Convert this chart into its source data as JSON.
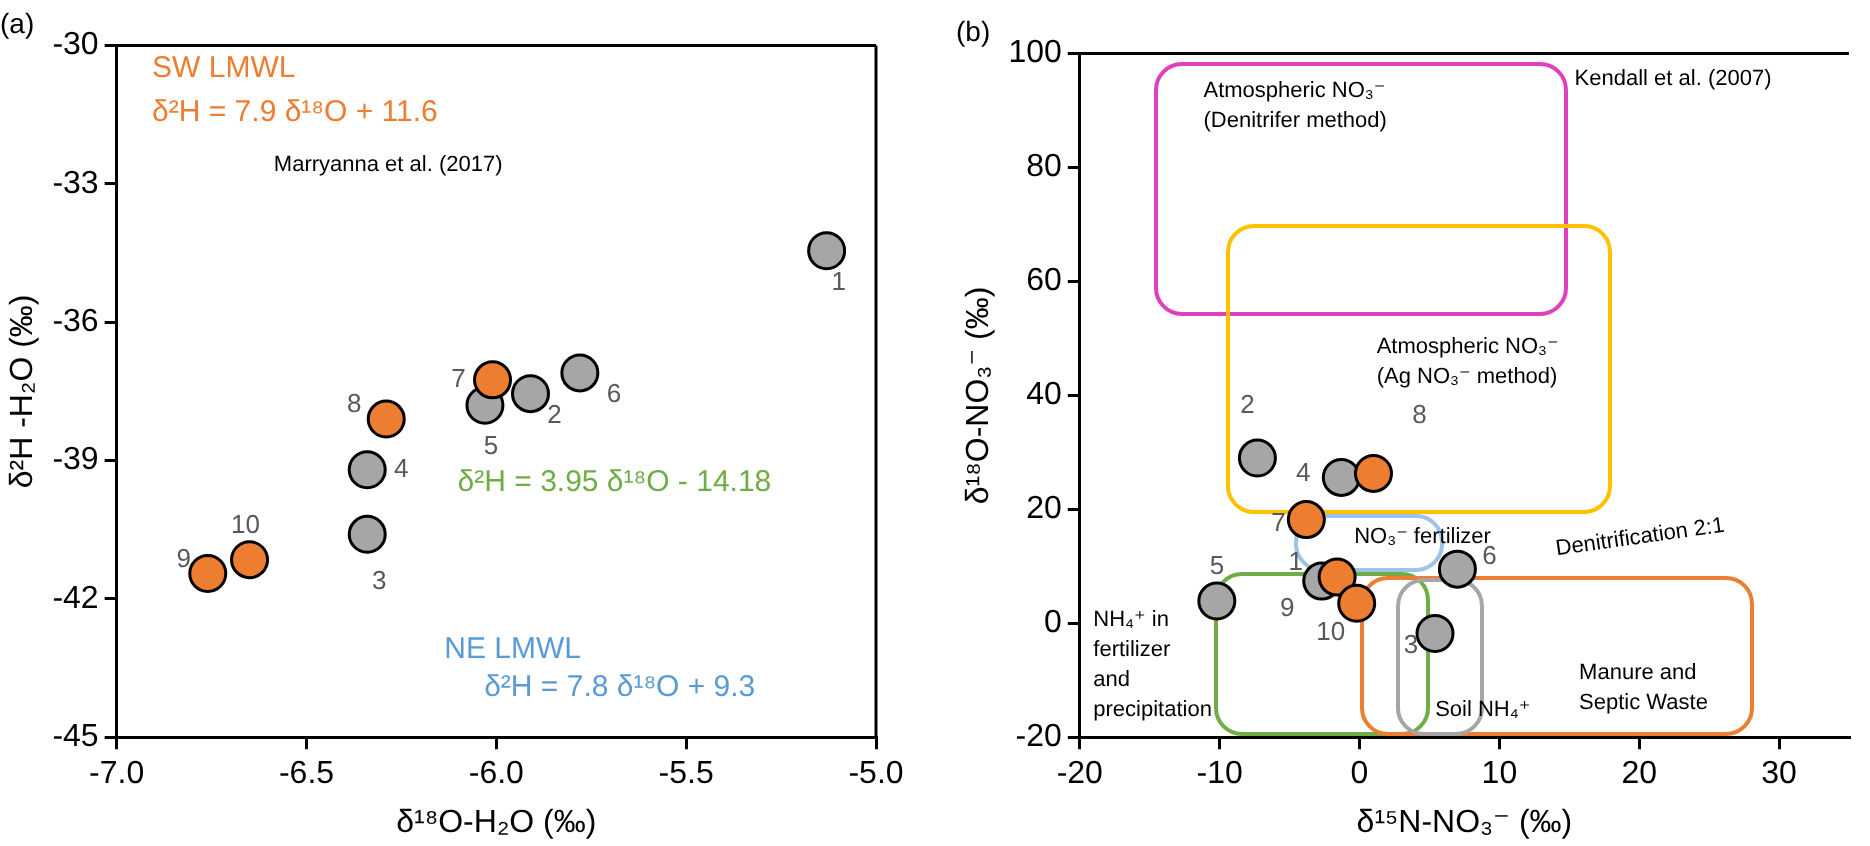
{
  "chart_data": [
    {
      "type": "scatter",
      "title": "(a)",
      "xlabel": "δ¹⁸O-H₂O (‰)",
      "ylabel": "δ²H -H₂O (‰)",
      "marker": "circle",
      "xlim": [
        -7,
        -5
      ],
      "ylim": [
        -45,
        -30
      ],
      "xticks": [
        {
          "value": -7,
          "label": "-7.0"
        },
        {
          "value": -6.5,
          "label": "-6.5"
        },
        {
          "value": -6,
          "label": "-6.0"
        },
        {
          "value": -5.5,
          "label": "-5.5"
        },
        {
          "value": -5,
          "label": "-5.0"
        }
      ],
      "yticks": [
        -45,
        -42,
        -39,
        -36,
        -33,
        -30
      ],
      "series": [
        {
          "color": "#a6a6a6",
          "x": [
            -5.13,
            -5.91,
            -6.34,
            -6.34,
            -6.03,
            -5.78
          ],
          "values": [
            -34.45,
            -37.55,
            -40.6,
            -39.2,
            -37.8,
            -37.1
          ]
        },
        {
          "color": "#ed7d31",
          "x": [
            -6.01,
            -6.29,
            -6.76,
            -6.65
          ],
          "values": [
            -37.25,
            -38.1,
            -41.45,
            -41.15
          ]
        }
      ],
      "annotations": [
        {
          "text": "1",
          "x": -5.13,
          "y": -34.45
        },
        {
          "text": "2",
          "x": -5.91,
          "y": -37.55
        },
        {
          "text": "3",
          "x": -6.34,
          "y": -40.6
        },
        {
          "text": "4",
          "x": -6.34,
          "y": -39.2
        },
        {
          "text": "5",
          "x": -6.03,
          "y": -37.8
        },
        {
          "text": "6",
          "x": -5.78,
          "y": -37.1
        },
        {
          "text": "7",
          "x": -6.01,
          "y": -37.25
        },
        {
          "text": "8",
          "x": -6.29,
          "y": -38.1
        },
        {
          "text": "9",
          "x": -6.76,
          "y": -41.45
        },
        {
          "text": "10",
          "x": -6.65,
          "y": -41.15
        },
        "SW LMWL",
        "δ²H = 7.9 δ¹⁸O + 11.6",
        "Marryanna et al. (2017)",
        "δ²H = 3.95 δ¹⁸O - 14.18",
        "NE LMWL",
        "δ²H = 7.8 δ¹⁸O + 9.3"
      ]
    },
    {
      "type": "scatter",
      "title": "(b)",
      "xlabel": "δ¹⁵N-NO₃⁻ (‰)",
      "ylabel": "δ¹⁸O-NO₃⁻ (‰)",
      "marker": "circle",
      "xlim": [
        -20,
        35
      ],
      "ylim": [
        -20,
        100
      ],
      "xticks": [
        -20,
        -10,
        0,
        10,
        20,
        30
      ],
      "yticks": [
        -20,
        0,
        20,
        40,
        60,
        80,
        100
      ],
      "series": [
        {
          "color": "#a6a6a6",
          "x": [
            -2.7,
            -7.3,
            5.4,
            -1.3,
            -10.2,
            7.0
          ],
          "values": [
            7.4,
            29,
            -1.8,
            25.6,
            3.9,
            9.5
          ]
        },
        {
          "color": "#ed7d31",
          "x": [
            -3.8,
            1.0,
            -1.6,
            -0.2
          ],
          "values": [
            18.2,
            26.3,
            8.1,
            3.5
          ]
        }
      ],
      "annotations": [
        {
          "text": "1",
          "x": -2.7,
          "y": 7.4
        },
        {
          "text": "2",
          "x": -7.3,
          "y": 29
        },
        {
          "text": "3",
          "x": 5.4,
          "y": -1.8
        },
        {
          "text": "4",
          "x": -1.3,
          "y": 25.6
        },
        {
          "text": "5",
          "x": -10.2,
          "y": 3.9
        },
        {
          "text": "6",
          "x": 7.0,
          "y": 9.5
        },
        {
          "text": "7",
          "x": -3.8,
          "y": 18.2
        },
        {
          "text": "8",
          "x": 1.0,
          "y": 26.3
        },
        {
          "text": "9",
          "x": -1.6,
          "y": 8.1
        },
        {
          "text": "10",
          "x": -0.2,
          "y": 3.5
        },
        "Atmospheric NO₃⁻\n(Denitrifer method)",
        "Kendall et al. (2007)",
        "Atmospheric NO₃⁻\n(Ag NO₃⁻ method)",
        "NO₃⁻ fertilizer",
        "Denitrification 2:1",
        "NH₄⁺ in\nfertilizer\nand\nprecipitation",
        "Soil NH₄⁺",
        "Manure and\nSeptic Waste"
      ]
    }
  ]
}
